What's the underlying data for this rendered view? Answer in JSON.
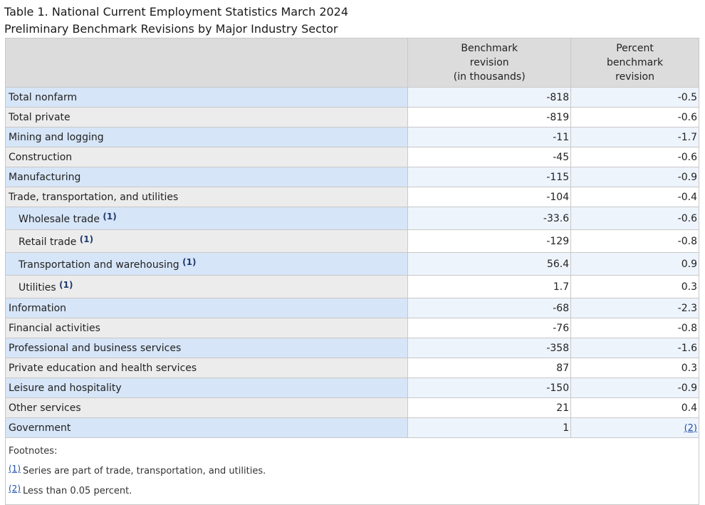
{
  "caption": {
    "line1": "Table 1. National Current Employment Statistics March 2024",
    "line2": "Preliminary Benchmark Revisions by Major Industry Sector"
  },
  "headers": {
    "col2": [
      "Benchmark",
      "revision",
      "(in thousands)"
    ],
    "col3": [
      "Percent",
      "benchmark",
      "revision"
    ]
  },
  "rows": [
    {
      "label": "Total nonfarm",
      "revision": "-818",
      "percent": "-0.5"
    },
    {
      "label": "Total private",
      "revision": "-819",
      "percent": "-0.6"
    },
    {
      "label": "Mining and logging",
      "revision": "-11",
      "percent": "-1.7"
    },
    {
      "label": "Construction",
      "revision": "-45",
      "percent": "-0.6"
    },
    {
      "label": "Manufacturing",
      "revision": "-115",
      "percent": "-0.9"
    },
    {
      "label": "Trade, transportation, and utilities",
      "revision": "-104",
      "percent": "-0.4"
    },
    {
      "label": "Wholesale trade",
      "footnote": "(1)",
      "revision": "-33.6",
      "percent": "-0.6"
    },
    {
      "label": "Retail trade",
      "footnote": "(1)",
      "revision": "-129",
      "percent": "-0.8"
    },
    {
      "label": "Transportation and warehousing",
      "footnote": "(1)",
      "revision": "56.4",
      "percent": "0.9"
    },
    {
      "label": "Utilities",
      "footnote": "(1)",
      "revision": "1.7",
      "percent": "0.3"
    },
    {
      "label": "Information",
      "revision": "-68",
      "percent": "-2.3"
    },
    {
      "label": "Financial activities",
      "revision": "-76",
      "percent": "-0.8"
    },
    {
      "label": "Professional and business services",
      "revision": "-358",
      "percent": "-1.6"
    },
    {
      "label": "Private education and health services",
      "revision": "87",
      "percent": "0.3"
    },
    {
      "label": "Leisure and hospitality",
      "revision": "-150",
      "percent": "-0.9"
    },
    {
      "label": "Other services",
      "revision": "21",
      "percent": "0.4"
    },
    {
      "label": "Government",
      "revision": "1",
      "percent_link": "(2)"
    }
  ],
  "footnotes": {
    "title": "Footnotes:",
    "items": [
      {
        "ref": "(1)",
        "text": "Series are part of trade, transportation, and utilities."
      },
      {
        "ref": "(2)",
        "text": "Less than 0.05 percent."
      }
    ]
  }
}
